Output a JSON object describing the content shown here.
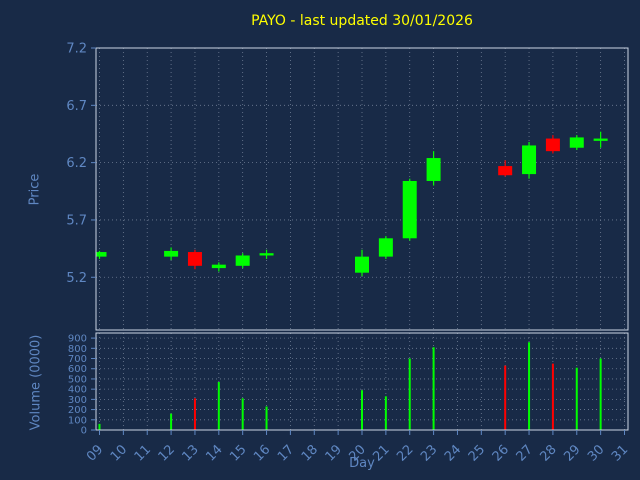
{
  "chart_data": {
    "type": "candlestick",
    "title": "PAYO - last updated 30/01/2026",
    "xlabel": "Day",
    "price_axis_label": "Price",
    "volume_axis_label": "Volume (0000)",
    "grid": true,
    "price_ticks": [
      7.2,
      6.7,
      6.2,
      5.7,
      5.2
    ],
    "price_range": [
      4.74,
      7.2
    ],
    "volume_ticks": [
      0,
      100,
      200,
      300,
      400,
      500,
      600,
      700,
      800,
      900
    ],
    "volume_range": [
      0,
      950
    ],
    "x_tick_labels": [
      "09",
      "10",
      "11",
      "12",
      "13",
      "14",
      "15",
      "16",
      "17",
      "18",
      "19",
      "20",
      "21",
      "22",
      "23",
      "24",
      "25",
      "26",
      "27",
      "28",
      "29",
      "30",
      "31"
    ],
    "x_day_range": [
      9,
      31
    ],
    "colors": {
      "background": "#182a47",
      "up": "#00ff00",
      "down": "#ff0000",
      "grid": "#b9c4d6",
      "spine": "#cdd6e4",
      "tick_label": "#5f87c2",
      "title": "#ffff00"
    },
    "candles": [
      {
        "day": 9,
        "open": 5.38,
        "high": 5.43,
        "low": 5.36,
        "close": 5.42,
        "volume": 60
      },
      {
        "day": 12,
        "open": 5.38,
        "high": 5.46,
        "low": 5.35,
        "close": 5.43,
        "volume": 160
      },
      {
        "day": 13,
        "open": 5.42,
        "high": 5.44,
        "low": 5.27,
        "close": 5.3,
        "volume": 310
      },
      {
        "day": 14,
        "open": 5.28,
        "high": 5.33,
        "low": 5.25,
        "close": 5.31,
        "volume": 470
      },
      {
        "day": 15,
        "open": 5.3,
        "high": 5.41,
        "low": 5.28,
        "close": 5.39,
        "volume": 310
      },
      {
        "day": 16,
        "open": 5.39,
        "high": 5.44,
        "low": 5.36,
        "close": 5.41,
        "volume": 230
      },
      {
        "day": 20,
        "open": 5.24,
        "high": 5.44,
        "low": 5.21,
        "close": 5.38,
        "volume": 390
      },
      {
        "day": 21,
        "open": 5.38,
        "high": 5.56,
        "low": 5.36,
        "close": 5.54,
        "volume": 330
      },
      {
        "day": 22,
        "open": 5.54,
        "high": 6.06,
        "low": 5.52,
        "close": 6.04,
        "volume": 700
      },
      {
        "day": 23,
        "open": 6.04,
        "high": 6.3,
        "low": 6.0,
        "close": 6.24,
        "volume": 810
      },
      {
        "day": 26,
        "open": 6.17,
        "high": 6.22,
        "low": 6.08,
        "close": 6.09,
        "volume": 630
      },
      {
        "day": 27,
        "open": 6.1,
        "high": 6.38,
        "low": 6.06,
        "close": 6.35,
        "volume": 860
      },
      {
        "day": 28,
        "open": 6.41,
        "high": 6.44,
        "low": 6.28,
        "close": 6.3,
        "volume": 650
      },
      {
        "day": 29,
        "open": 6.33,
        "high": 6.44,
        "low": 6.31,
        "close": 6.42,
        "volume": 610
      },
      {
        "day": 30,
        "open": 6.39,
        "high": 6.47,
        "low": 6.33,
        "close": 6.41,
        "volume": 700
      }
    ]
  }
}
